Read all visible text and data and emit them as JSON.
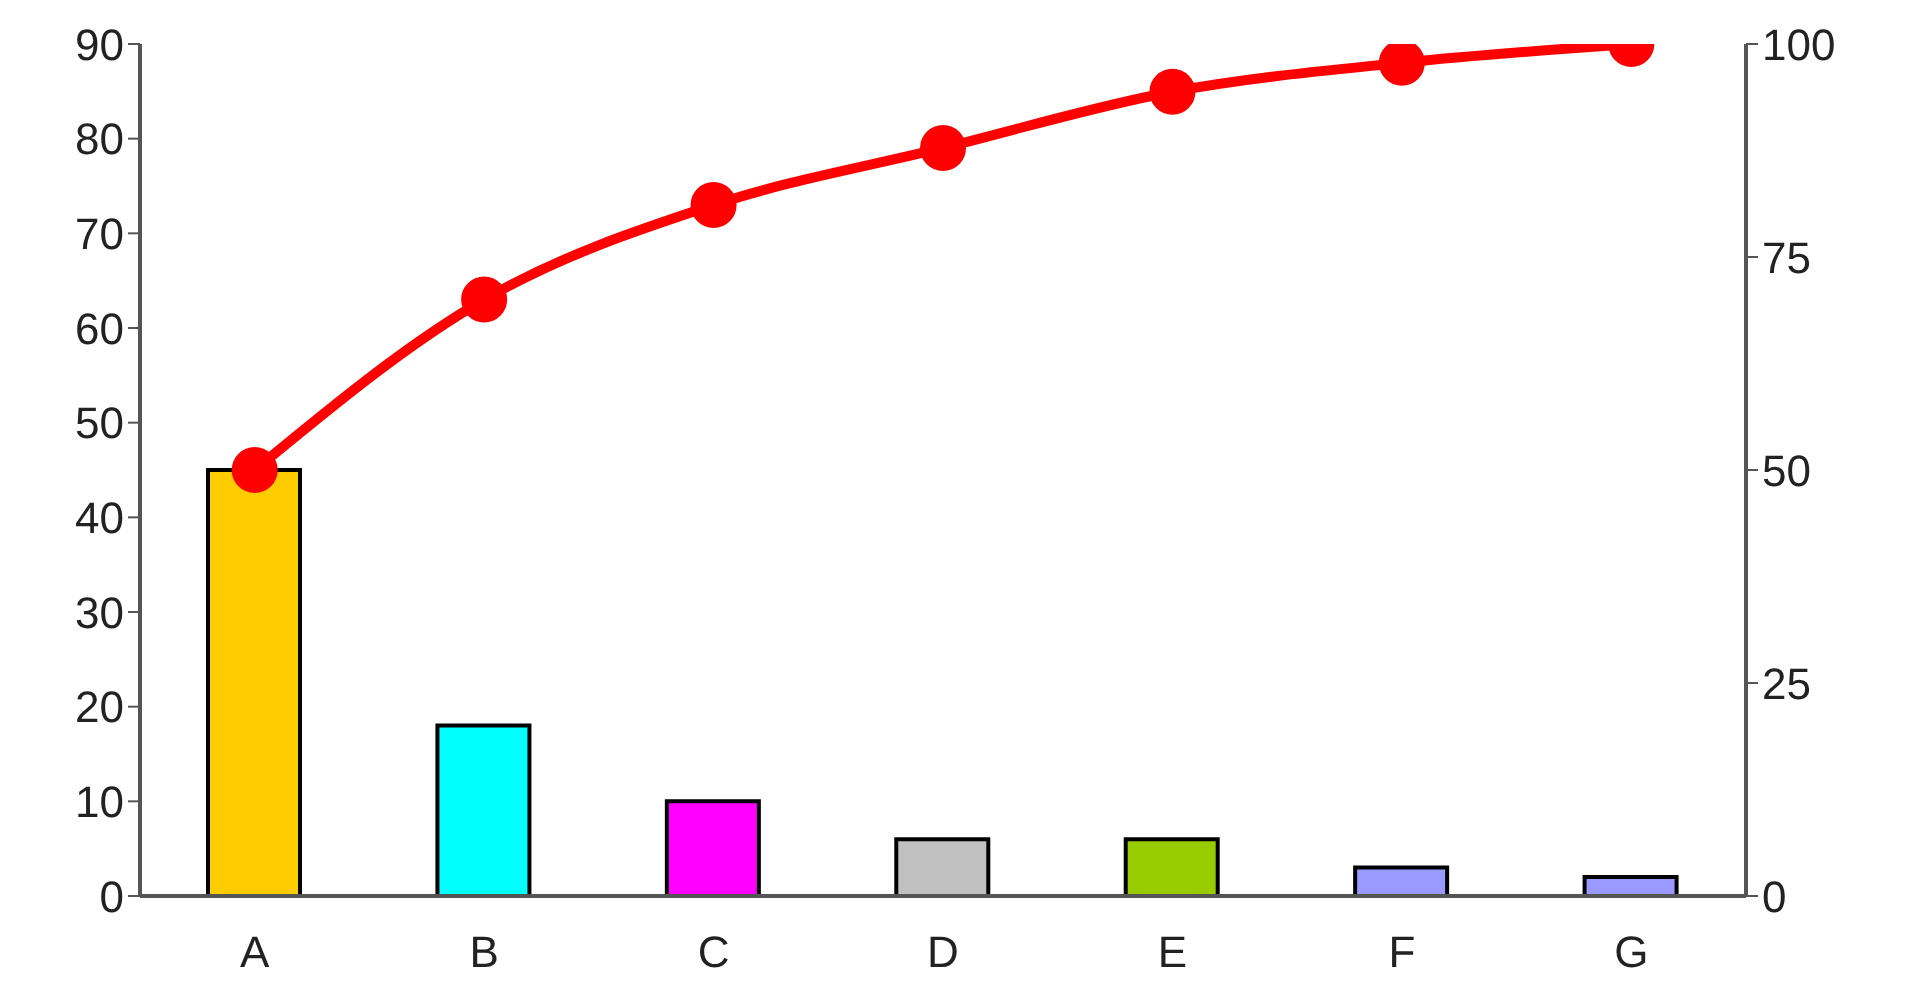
{
  "chart_data": {
    "type": "bar",
    "categories": [
      "A",
      "B",
      "C",
      "D",
      "E",
      "F",
      "G"
    ],
    "series": [
      {
        "colors": [
          "#ffcc00",
          "#00ffff",
          "#ff00ff",
          "#c0c0c0",
          "#99cc00",
          "#9999ff",
          "#9999ff"
        ],
        "values": [
          45,
          18,
          10,
          6,
          6,
          3,
          2
        ]
      },
      {
        "type": "line",
        "axis": "y2",
        "color": "#ff0000",
        "values": [
          50,
          70,
          81.1,
          87.8,
          94.4,
          97.8,
          100
        ]
      }
    ],
    "ylim": [
      0,
      90
    ],
    "yticks": [
      0,
      10,
      20,
      30,
      40,
      50,
      60,
      70,
      80,
      90
    ],
    "y2lim": [
      0,
      100
    ],
    "y2ticks": [
      0,
      25,
      50,
      75,
      100
    ],
    "grid": false,
    "legend": false,
    "marker": "circle",
    "line_style": "solid"
  }
}
